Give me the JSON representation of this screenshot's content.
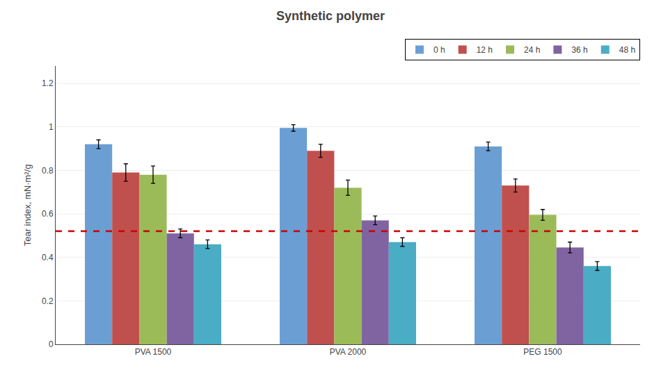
{
  "chart_data": {
    "type": "bar",
    "title": "Synthetic polymer",
    "ylabel": "Tear index, mN·m²/g",
    "categories": [
      "PVA 1500",
      "PVA 2000",
      "PEG 1500"
    ],
    "series": [
      {
        "name": "0 h",
        "color": "#6b9fd4",
        "values": [
          0.92,
          0.995,
          0.91
        ],
        "errors": [
          0.02,
          0.015,
          0.02
        ]
      },
      {
        "name": "12 h",
        "color": "#c0504d",
        "values": [
          0.79,
          0.89,
          0.73
        ],
        "errors": [
          0.04,
          0.03,
          0.03
        ]
      },
      {
        "name": "24 h",
        "color": "#9bbb59",
        "values": [
          0.78,
          0.72,
          0.595
        ],
        "errors": [
          0.04,
          0.035,
          0.025
        ]
      },
      {
        "name": "36 h",
        "color": "#8064a2",
        "values": [
          0.51,
          0.57,
          0.445
        ],
        "errors": [
          0.02,
          0.02,
          0.025
        ]
      },
      {
        "name": "48 h",
        "color": "#4bacc6",
        "values": [
          0.46,
          0.47,
          0.36
        ],
        "errors": [
          0.02,
          0.02,
          0.02
        ]
      }
    ],
    "reference_line": {
      "y": 0.52,
      "color": "#cc0000",
      "line_style": "dashed"
    },
    "ylim": [
      0.0,
      1.28
    ],
    "yticks": [
      0.0,
      0.2,
      0.4,
      0.6,
      0.8,
      1.0,
      1.2
    ],
    "grid": true,
    "legend": "upper right"
  }
}
